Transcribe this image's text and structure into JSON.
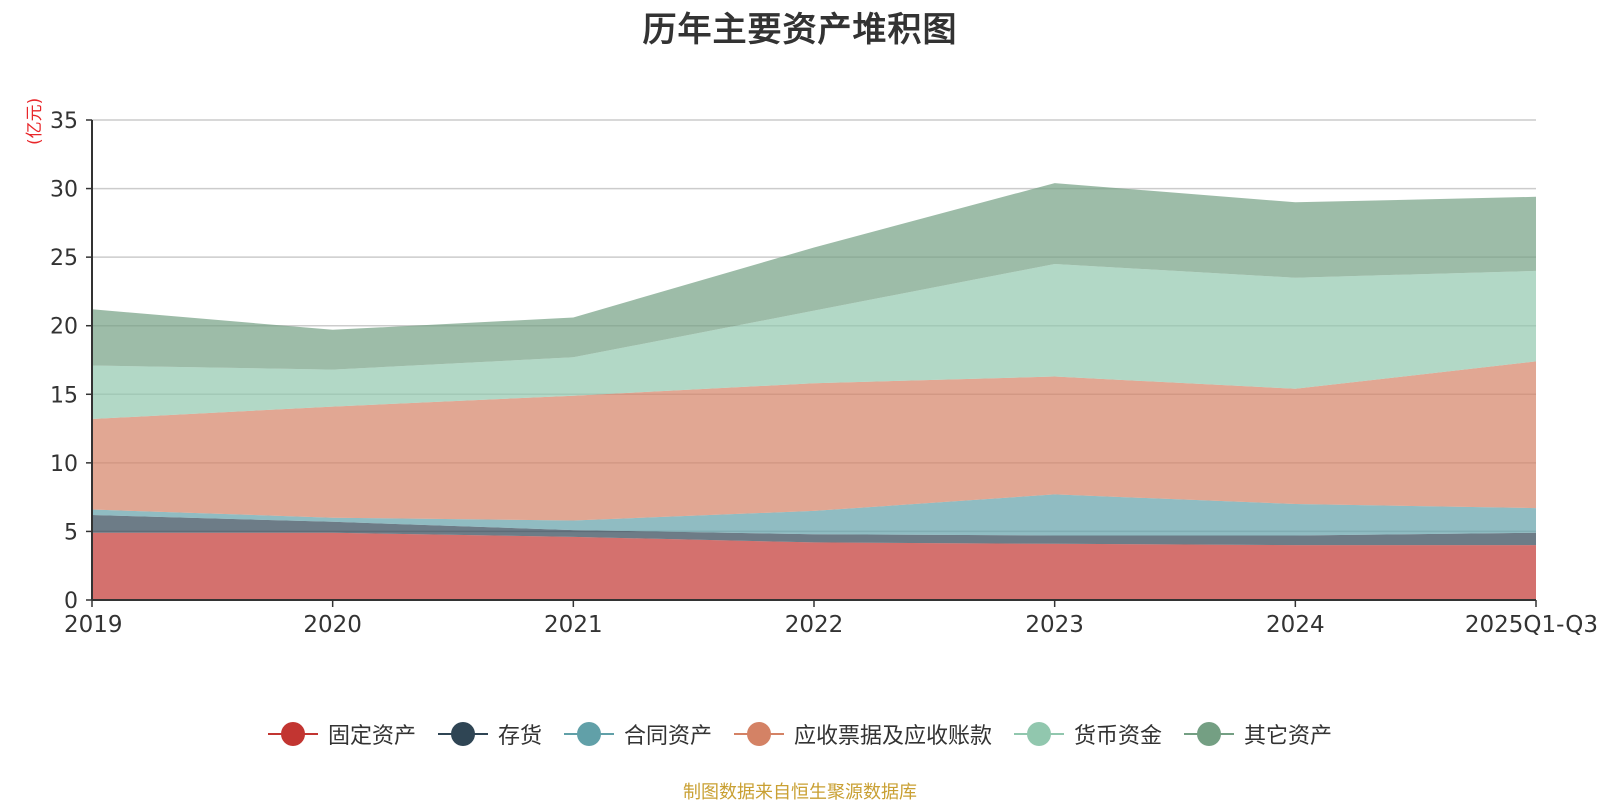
{
  "chart_data": {
    "type": "area",
    "stacked": true,
    "title": "历年主要资产堆积图",
    "ylabel": "(亿元)",
    "xlabel": "",
    "x": [
      "2019",
      "2020",
      "2021",
      "2022",
      "2023",
      "2024",
      "2025Q1-Q3"
    ],
    "ylim": [
      0,
      35
    ],
    "yticks": [
      0,
      5,
      10,
      15,
      20,
      25,
      30,
      35
    ],
    "grid": true,
    "legend_position": "bottom",
    "series": [
      {
        "name": "固定资产",
        "color": "#c23531",
        "values": [
          4.9,
          4.9,
          4.6,
          4.2,
          4.1,
          4.0,
          4.0
        ]
      },
      {
        "name": "存货",
        "color": "#2f4554",
        "values": [
          1.3,
          0.8,
          0.5,
          0.6,
          0.6,
          0.7,
          0.9
        ]
      },
      {
        "name": "合同资产",
        "color": "#61a0a8",
        "values": [
          0.4,
          0.3,
          0.7,
          1.7,
          3.0,
          2.3,
          1.8
        ]
      },
      {
        "name": "应收票据及应收账款",
        "color": "#d48265",
        "values": [
          6.6,
          8.1,
          9.1,
          9.3,
          8.6,
          8.4,
          10.7
        ]
      },
      {
        "name": "货币资金",
        "color": "#91c7ae",
        "values": [
          3.9,
          2.7,
          2.8,
          5.3,
          8.2,
          8.1,
          6.6
        ]
      },
      {
        "name": "其它资产",
        "color": "#749f83",
        "values": [
          4.1,
          2.9,
          2.9,
          4.6,
          5.9,
          5.5,
          5.4
        ]
      }
    ]
  },
  "source": "制图数据来自恒生聚源数据库"
}
